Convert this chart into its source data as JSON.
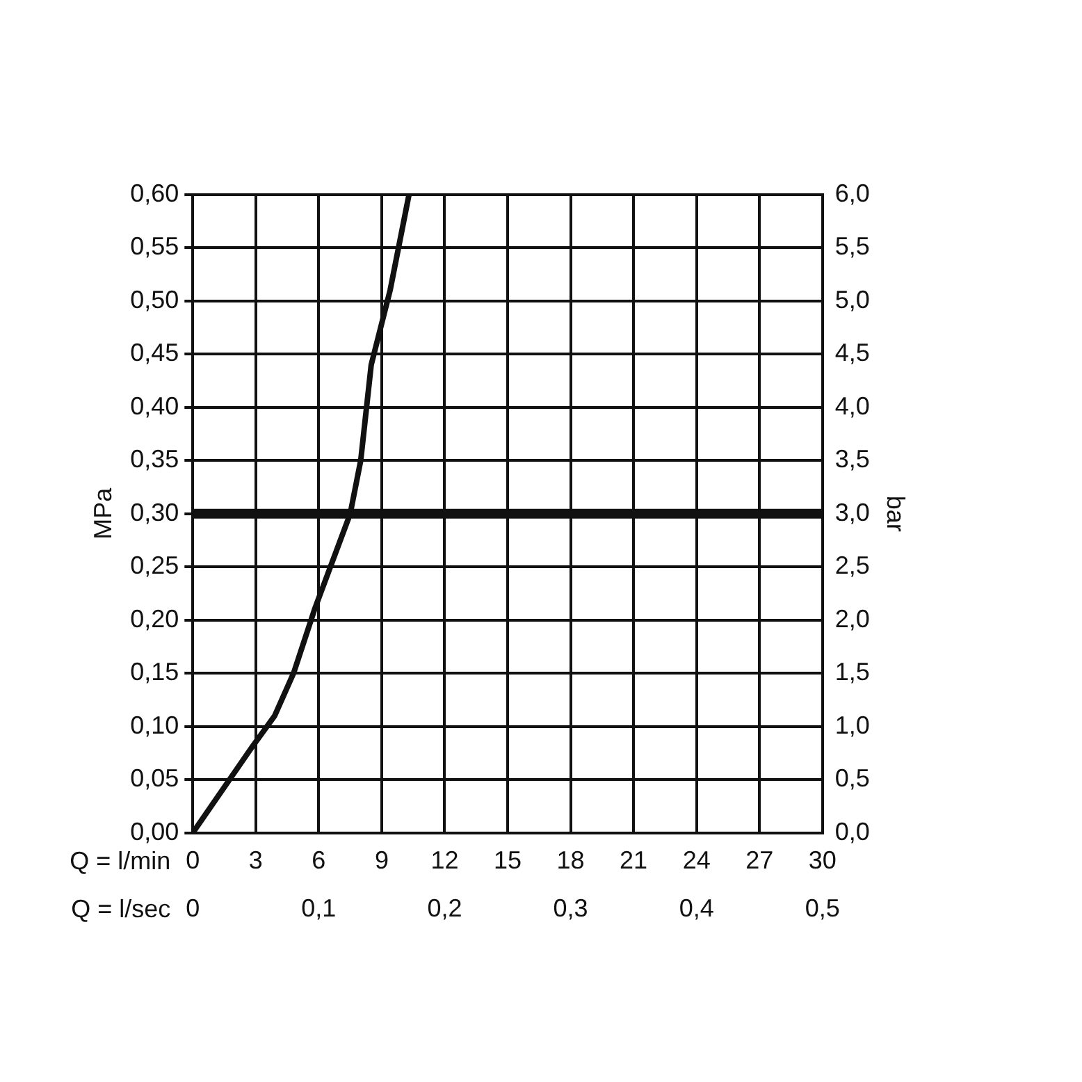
{
  "chart_data": {
    "type": "line",
    "xlabel": "Q = l/min",
    "x2label": "Q = l/sec",
    "ylabel": "MPa",
    "y2label": "bar",
    "x": [
      0,
      2.8,
      3.9,
      4.8,
      5.8,
      7.5,
      8.0,
      8.5,
      9.4,
      10.3
    ],
    "series": [
      {
        "color": "#111111",
        "values": [
          0,
          0.08,
          0.11,
          0.15,
          0.21,
          0.3,
          0.35,
          0.44,
          0.51,
          0.6
        ]
      }
    ],
    "xlim": [
      0,
      30
    ],
    "xticks": [
      0,
      3,
      6,
      9,
      12,
      15,
      18,
      21,
      24,
      27,
      30
    ],
    "x2lim": [
      0,
      0.5
    ],
    "x2ticks": [
      0,
      {
        "value": 0.1,
        "label": "0,1"
      },
      {
        "value": 0.2,
        "label": "0,2"
      },
      {
        "value": 0.3,
        "label": "0,3"
      },
      {
        "value": 0.4,
        "label": "0,4"
      },
      {
        "value": 0.5,
        "label": "0,5"
      }
    ],
    "ylim": [
      0,
      0.6
    ],
    "yticks": [
      {
        "value": 0,
        "label": "0,00"
      },
      {
        "value": 0.05,
        "label": "0,05"
      },
      {
        "value": 0.1,
        "label": "0,10"
      },
      {
        "value": 0.15,
        "label": "0,15"
      },
      {
        "value": 0.2,
        "label": "0,20"
      },
      {
        "value": 0.25,
        "label": "0,25"
      },
      {
        "value": 0.3,
        "label": "0,30"
      },
      {
        "value": 0.35,
        "label": "0,35"
      },
      {
        "value": 0.4,
        "label": "0,40"
      },
      {
        "value": 0.45,
        "label": "0,45"
      },
      {
        "value": 0.5,
        "label": "0,50"
      },
      {
        "value": 0.55,
        "label": "0,55"
      },
      {
        "value": 0.6,
        "label": "0,60"
      }
    ],
    "y2lim": [
      0,
      6
    ],
    "y2ticks": [
      {
        "value": 0,
        "label": "0,0"
      },
      {
        "value": 0.5,
        "label": "0,5"
      },
      {
        "value": 1,
        "label": "1,0"
      },
      {
        "value": 1.5,
        "label": "1,5"
      },
      {
        "value": 2,
        "label": "2,0"
      },
      {
        "value": 2.5,
        "label": "2,5"
      },
      {
        "value": 3,
        "label": "3,0"
      },
      {
        "value": 3.5,
        "label": "3,5"
      },
      {
        "value": 4,
        "label": "4,0"
      },
      {
        "value": 4.5,
        "label": "4,5"
      },
      {
        "value": 5,
        "label": "5,0"
      },
      {
        "value": 5.5,
        "label": "5,5"
      },
      {
        "value": 6,
        "label": "6,0"
      }
    ],
    "ref_lines": [
      {
        "axis": "y",
        "value": 0.3,
        "color": "#111111"
      }
    ],
    "grid": true,
    "legend": false,
    "marker": "none",
    "line_style": "solid"
  }
}
